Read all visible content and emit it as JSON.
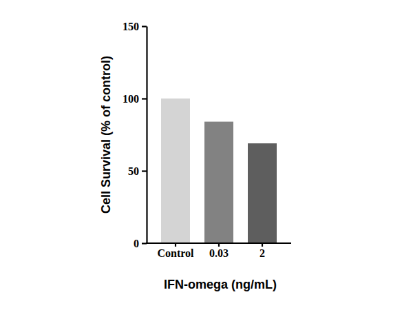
{
  "chart_data": {
    "type": "bar",
    "categories": [
      "Control",
      "0.03",
      "2"
    ],
    "values": [
      100,
      84,
      69
    ],
    "colors": [
      "#d4d4d4",
      "#828282",
      "#5e5e5e"
    ],
    "x_label": "IFN-omega (ng/mL)",
    "y_label": "Cell Survival (% of control)",
    "ylim": [
      0,
      150
    ],
    "yticks": [
      0,
      50,
      100,
      150
    ],
    "grid": false
  }
}
